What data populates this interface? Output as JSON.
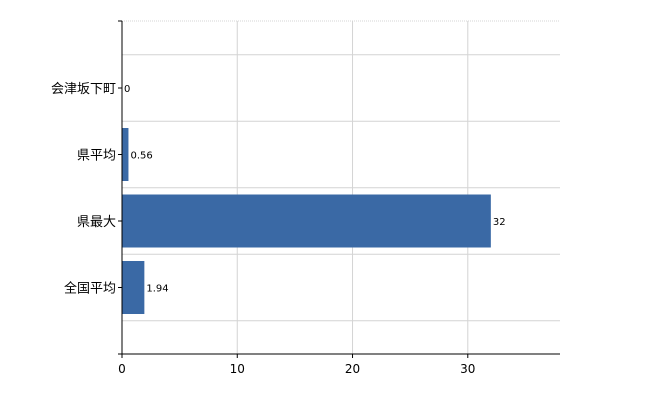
{
  "chart_data": {
    "type": "bar",
    "orientation": "horizontal",
    "categories": [
      "会津坂下町",
      "県平均",
      "県最大",
      "全国平均"
    ],
    "values": [
      0,
      0.56,
      32,
      1.94
    ],
    "value_labels": [
      "0",
      "0.56",
      "32",
      "1.94"
    ],
    "xlim": [
      0,
      38
    ],
    "x_ticks": [
      0,
      10,
      20,
      30
    ],
    "x_tick_labels": [
      "0",
      "10",
      "20",
      "30"
    ],
    "grid": true,
    "legend": "none",
    "title": "",
    "xlabel": "",
    "ylabel": "",
    "bar_color": "#3a69a5",
    "grid_color": "#d4d4d4",
    "axis_color": "#000000"
  }
}
